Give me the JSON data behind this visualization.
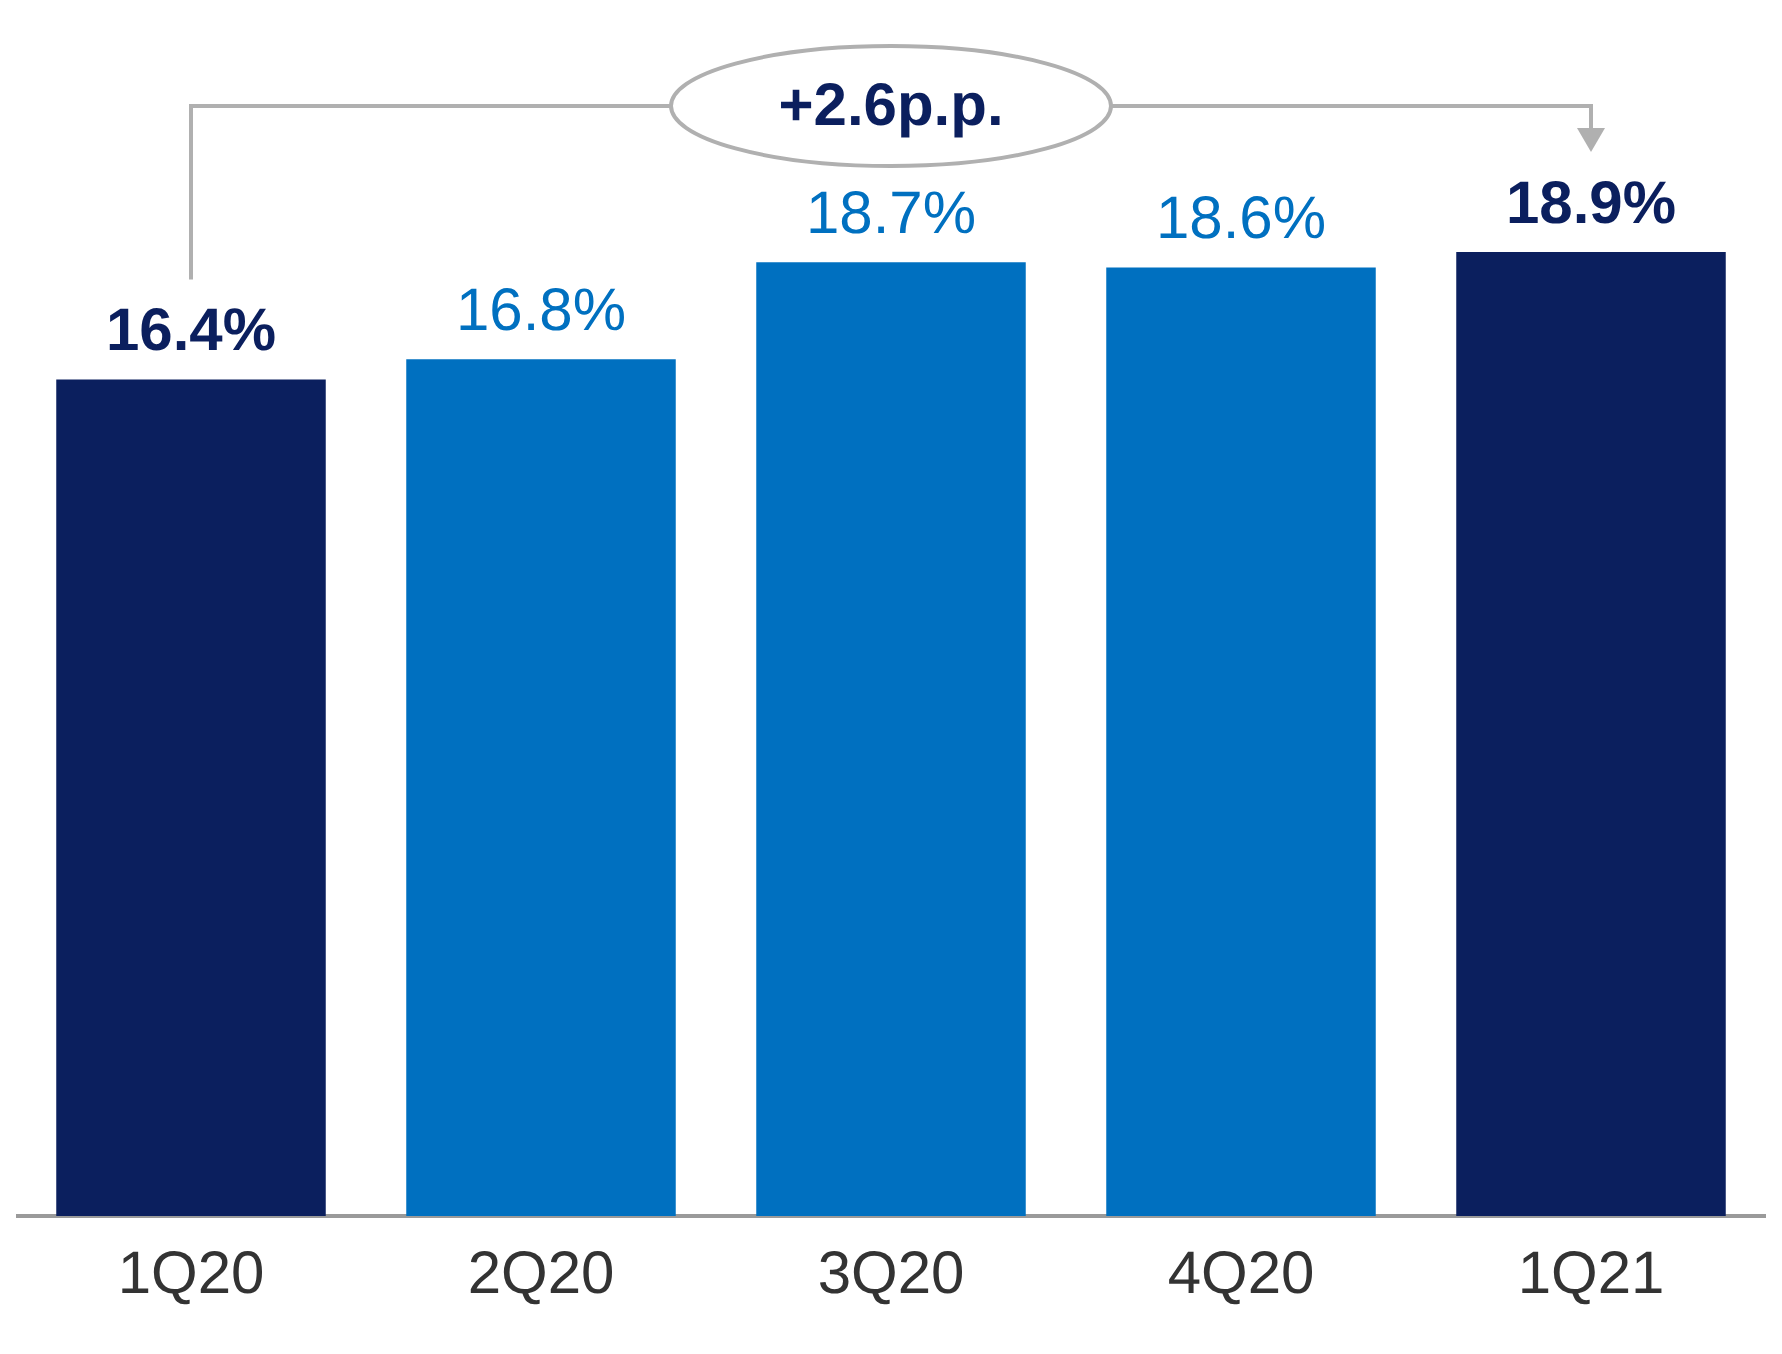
{
  "chart_data": {
    "type": "bar",
    "categories": [
      "1Q20",
      "2Q20",
      "3Q20",
      "4Q20",
      "1Q21"
    ],
    "values": [
      16.4,
      16.8,
      18.7,
      18.6,
      18.9
    ],
    "colors": [
      "#0b1f5e",
      "#0070c0",
      "#0070c0",
      "#0070c0",
      "#0b1f5e"
    ],
    "value_labels": [
      "16.4%",
      "16.8%",
      "18.7%",
      "18.6%",
      "18.9%"
    ],
    "annotations": [
      "+2.6p.p."
    ],
    "legend": false
  }
}
